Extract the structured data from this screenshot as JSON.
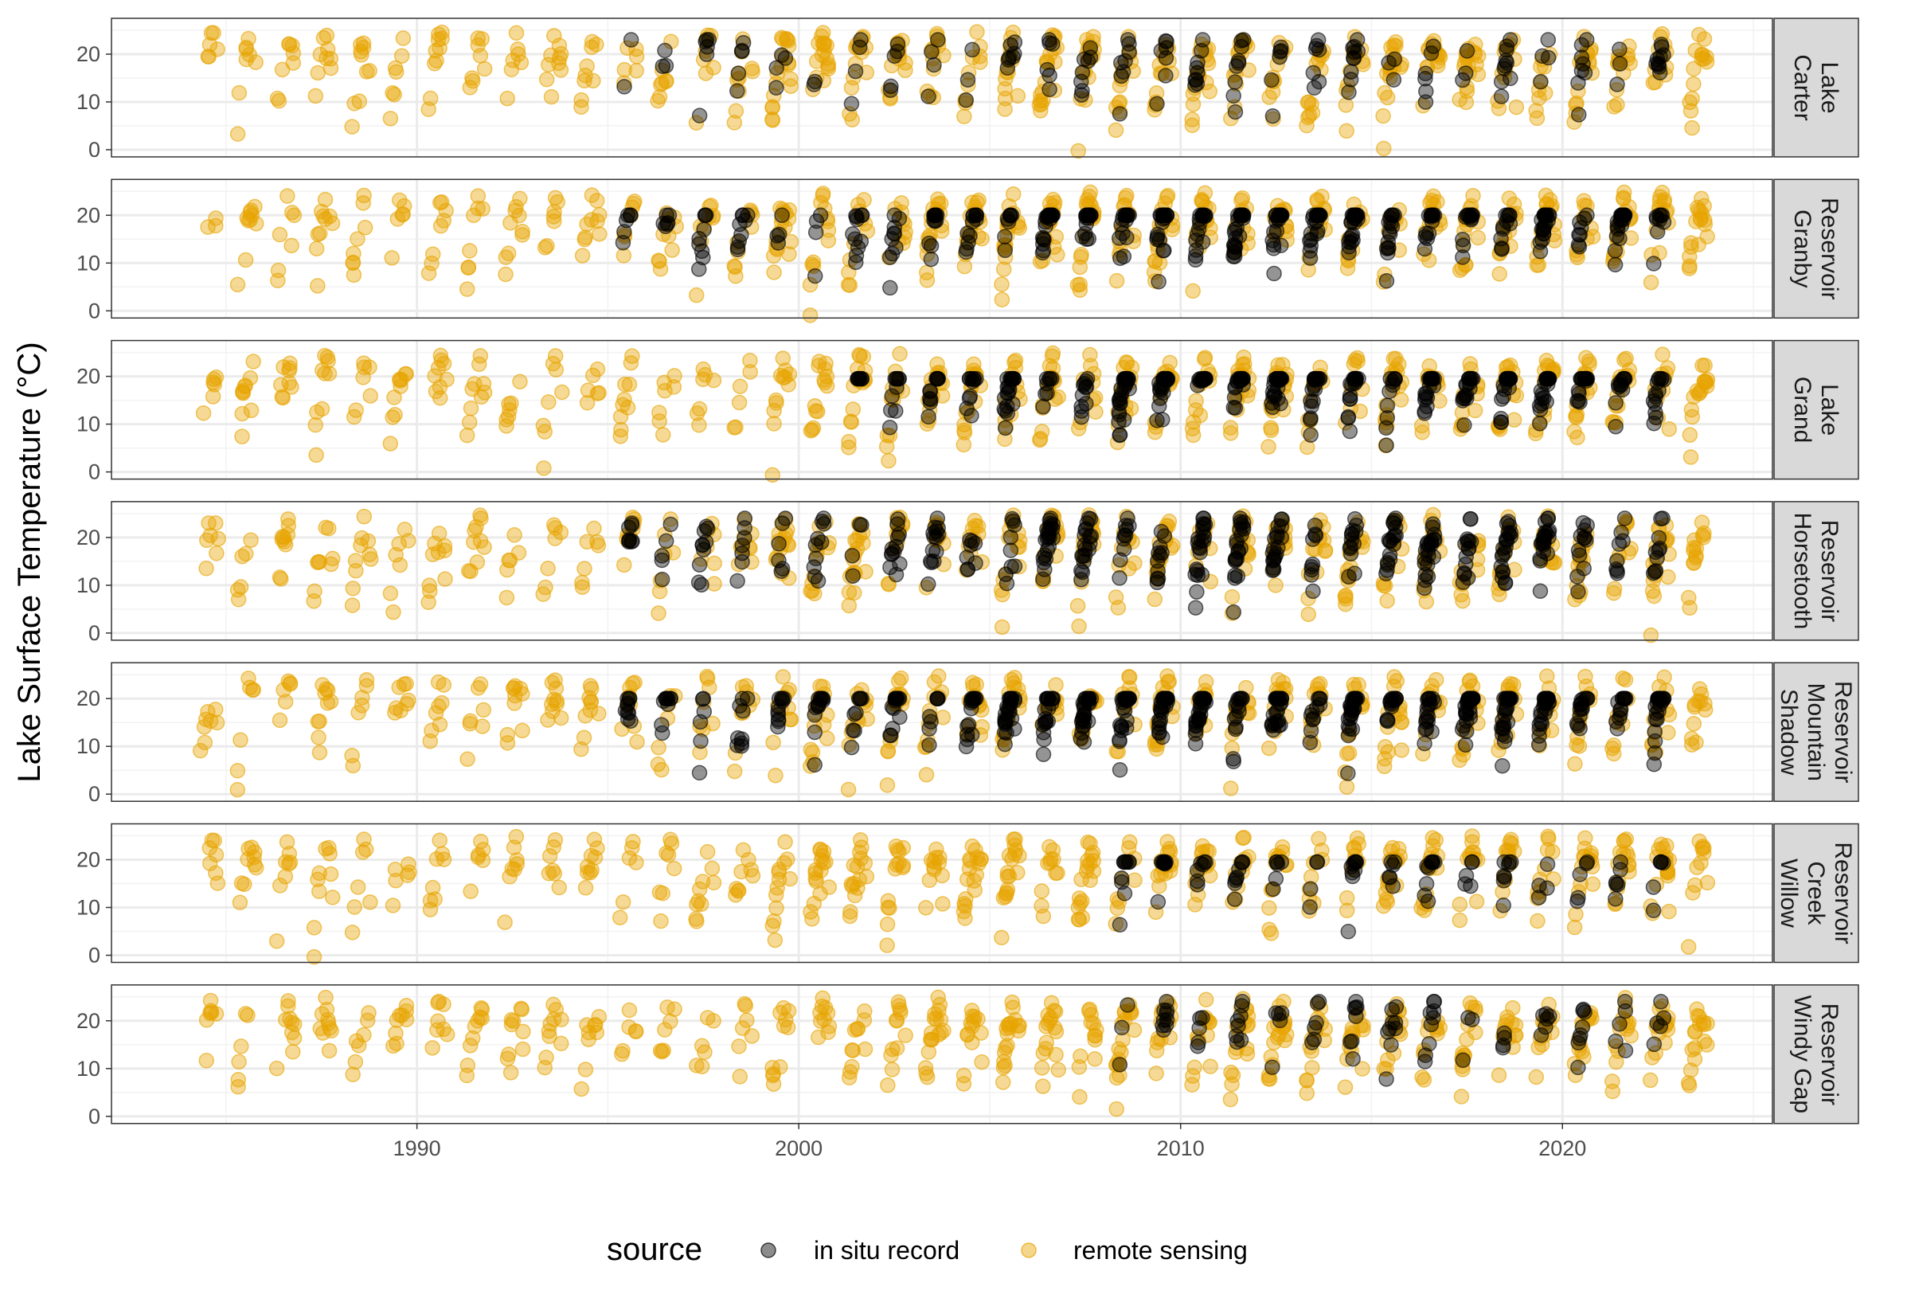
{
  "chart_data": {
    "type": "scatter",
    "faceted_by": "lake",
    "ylabel": "Lake Surface Temperature (°C)",
    "xlabel": "",
    "xlim": [
      1982,
      2025.5
    ],
    "ylim": [
      -1.5,
      27.5
    ],
    "x_ticks": [
      1990,
      2000,
      2010,
      2020
    ],
    "x_tick_labels": [
      "1990",
      "2000",
      "2010",
      "2020"
    ],
    "y_ticks": [
      0,
      10,
      20
    ],
    "y_tick_labels": [
      "0",
      "10",
      "20"
    ],
    "grid": true,
    "legend": {
      "title": "source",
      "position": "bottom",
      "entries": [
        {
          "label": "in situ record",
          "color": "#000000",
          "opacity": 0.45
        },
        {
          "label": "remote sensing",
          "color": "#E6A400",
          "opacity": 0.45
        }
      ]
    },
    "series_names": [
      "in situ record",
      "remote sensing"
    ],
    "panels": [
      {
        "lake_lines": [
          "Carter",
          "Lake"
        ],
        "rs_start": 1984.5,
        "is_start": 1995.3,
        "is_density": 0.55,
        "is_max": 23
      },
      {
        "lake_lines": [
          "Granby",
          "Reservoir"
        ],
        "rs_start": 1984.5,
        "is_start": 1995.3,
        "is_density": 1.2,
        "is_max": 20
      },
      {
        "lake_lines": [
          "Grand",
          "Lake"
        ],
        "rs_start": 1984.4,
        "is_start": 2001.5,
        "is_density": 1.4,
        "is_max": 19.5
      },
      {
        "lake_lines": [
          "Horsetooth",
          "Reservoir"
        ],
        "rs_start": 1984.3,
        "is_start": 1995.5,
        "is_density": 1.4,
        "is_max": 24
      },
      {
        "lake_lines": [
          "Shadow",
          "Mountain",
          "Reservoir"
        ],
        "rs_start": 1984.3,
        "is_start": 1995.4,
        "is_density": 1.5,
        "is_max": 20
      },
      {
        "lake_lines": [
          "Willow",
          "Creek",
          "Reservoir"
        ],
        "rs_start": 1984.5,
        "is_start": 2008.3,
        "is_density": 0.6,
        "is_max": 19.5
      },
      {
        "lake_lines": [
          "Windy Gap",
          "Reservoir"
        ],
        "rs_start": 1984.3,
        "is_start": 2008.3,
        "is_density": 0.5,
        "is_max": 24
      }
    ]
  }
}
